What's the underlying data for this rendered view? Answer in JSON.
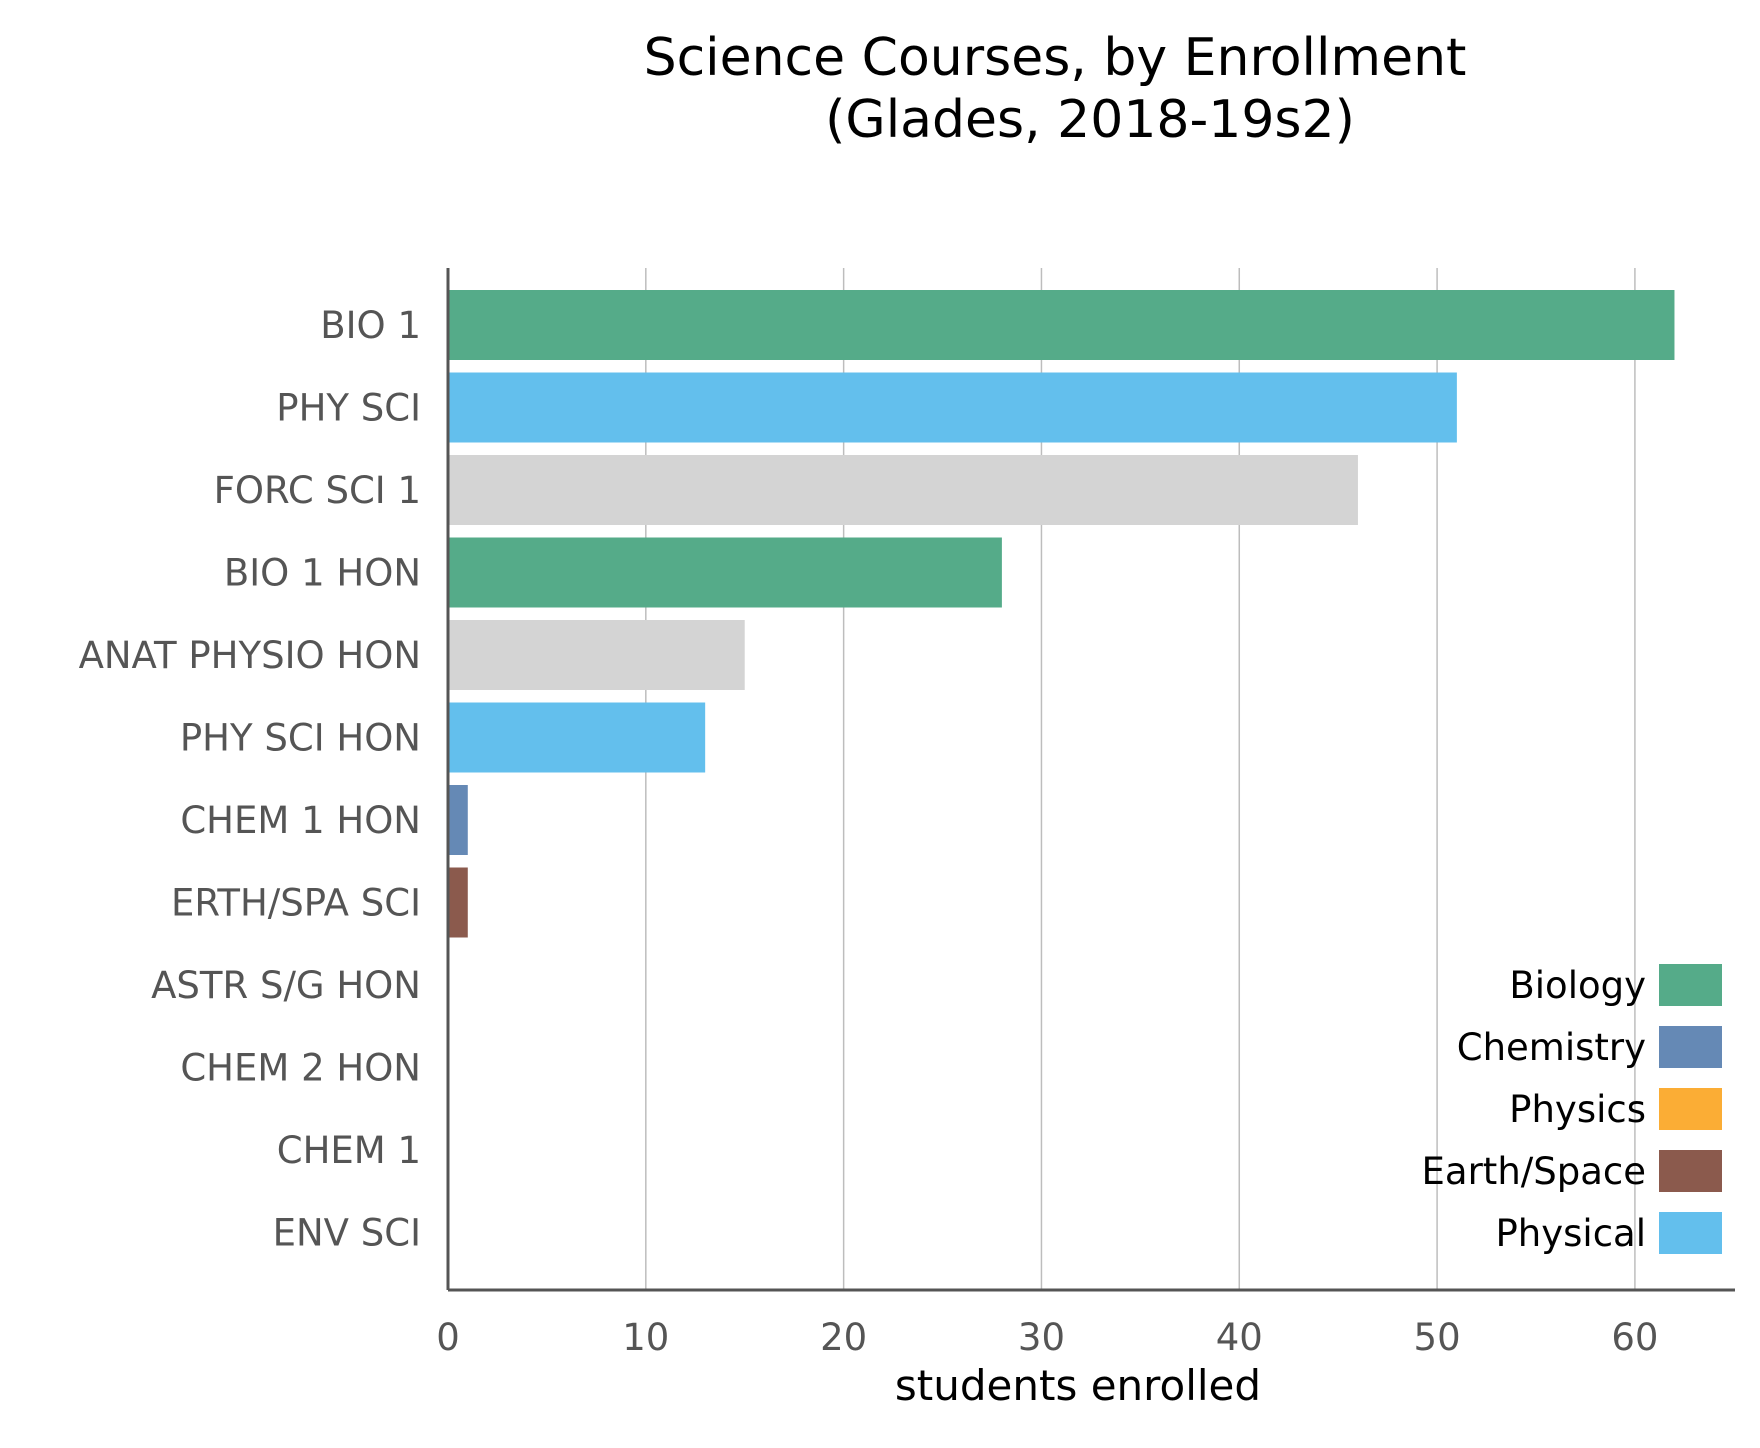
{
  "chart_data": {
    "type": "bar",
    "orientation": "horizontal",
    "title_lines": [
      "Science Courses, by Enrollment",
      "(Glades, 2018-19s2)"
    ],
    "xlabel": "students enrolled",
    "ylabel": "",
    "xlim": [
      0,
      65
    ],
    "xticks": [
      0,
      10,
      20,
      30,
      40,
      50,
      60
    ],
    "grid": "vertical",
    "legend_position": "bottom-right",
    "legend": [
      {
        "name": "Biology",
        "color": "#55ab89"
      },
      {
        "name": "Chemistry",
        "color": "#6589b5"
      },
      {
        "name": "Physics",
        "color": "#fbad35"
      },
      {
        "name": "Earth/Space",
        "color": "#8b5a4d"
      },
      {
        "name": "Physical",
        "color": "#63bfed"
      }
    ],
    "other_color": "#d4d4d4",
    "categories": [
      "BIO 1",
      "PHY SCI",
      "FORC SCI 1",
      "BIO 1 HON",
      "ANAT PHYSIO HON",
      "PHY SCI HON",
      "CHEM 1 HON",
      "ERTH/SPA SCI",
      "ASTR S/G HON",
      "CHEM 2 HON",
      "CHEM 1",
      "ENV SCI"
    ],
    "values": [
      62,
      51,
      46,
      28,
      15,
      13,
      1,
      1,
      0,
      0,
      0,
      0
    ],
    "bar_colors": [
      "#55ab89",
      "#63bfed",
      "#d4d4d4",
      "#55ab89",
      "#d4d4d4",
      "#63bfed",
      "#6589b5",
      "#8b5a4d",
      "#d4d4d4",
      "#6589b5",
      "#6589b5",
      "#d4d4d4"
    ]
  }
}
